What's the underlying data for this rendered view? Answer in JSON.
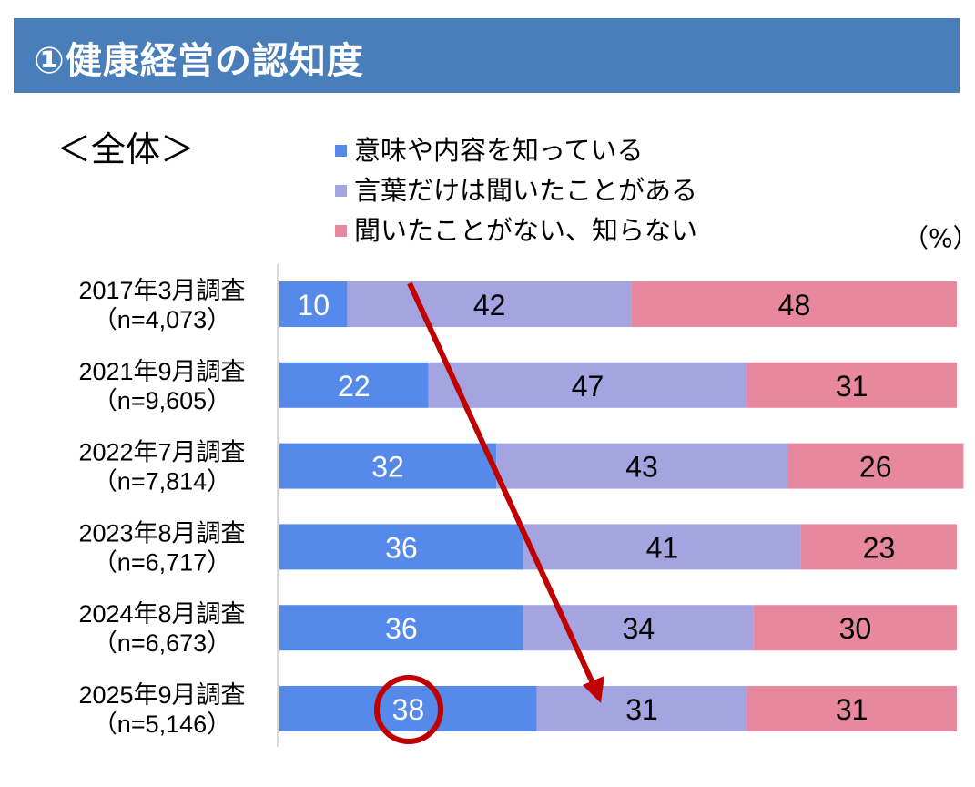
{
  "header": {
    "title": "①健康経営の認知度"
  },
  "subtitle": "＜全体＞",
  "unit": "（%）",
  "colors": {
    "header": "#4a7ebb",
    "s1": "#5589ea",
    "s2": "#a4a4e0",
    "s3": "#e8889e",
    "annotation": "#c00000"
  },
  "chart_data": {
    "type": "bar",
    "orientation": "horizontal-stacked-100",
    "categories": [
      {
        "label": "2017年3月調査",
        "n": "（n=4,073）"
      },
      {
        "label": "2021年9月調査",
        "n": "（n=9,605）"
      },
      {
        "label": "2022年7月調査",
        "n": "（n=7,814）"
      },
      {
        "label": "2023年8月調査",
        "n": "（n=6,717）"
      },
      {
        "label": "2024年8月調査",
        "n": "（n=6,673）"
      },
      {
        "label": "2025年9月調査",
        "n": "（n=5,146）"
      }
    ],
    "series": [
      {
        "name": "意味や内容を知っている",
        "color": "#5589ea",
        "values": [
          10,
          22,
          32,
          36,
          36,
          38
        ]
      },
      {
        "name": "言葉だけは聞いたことがある",
        "color": "#a4a4e0",
        "values": [
          42,
          47,
          43,
          41,
          34,
          31
        ]
      },
      {
        "name": "聞いたことがない、知らない",
        "color": "#e8889e",
        "values": [
          48,
          31,
          26,
          23,
          30,
          31
        ]
      }
    ],
    "xlim": [
      0,
      100
    ],
    "legend": "top",
    "annotations": [
      "arrow from 2017 bar down to 2025 bar",
      "circle around 2025 value 38"
    ]
  }
}
